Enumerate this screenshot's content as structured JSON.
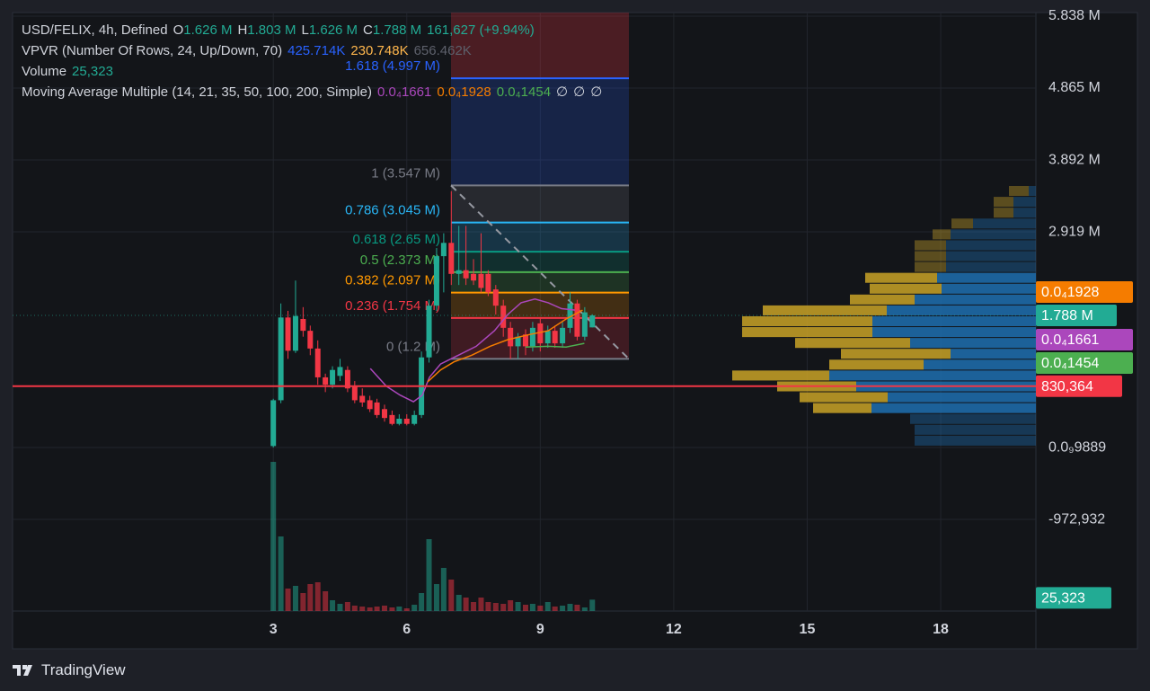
{
  "chart_data": {
    "type": "candlestick",
    "title": "USD/FELIX, 4h, Defined",
    "ohlc_legend": [
      {
        "key": "O",
        "value": 1626000,
        "label": "1.626 M"
      },
      {
        "key": "H",
        "value": 1803000,
        "label": "1.803 M"
      },
      {
        "key": "L",
        "value": 1626000,
        "label": "1.626 M"
      },
      {
        "key": "C",
        "value": 1788000,
        "label": "1.788 M"
      }
    ],
    "change": {
      "value": 161627,
      "label": "161,627 (+9.94%)"
    },
    "up_color": "#22ab94",
    "down_color": "#f23645",
    "x": [
      3,
      3.17,
      3.33,
      3.5,
      3.67,
      3.83,
      4,
      4.17,
      4.33,
      4.5,
      4.67,
      4.83,
      5,
      5.17,
      5.33,
      5.5,
      5.67,
      5.83,
      6,
      6.17,
      6.33,
      6.5,
      6.67,
      6.83,
      7,
      7.17,
      7.33,
      7.5,
      7.67,
      7.83,
      8,
      8.17,
      8.33,
      8.5,
      8.67,
      8.83,
      9,
      9.17,
      9.33,
      9.5,
      9.67,
      9.83,
      10,
      10.17
    ],
    "open": [
      20000,
      640000,
      1760000,
      1310000,
      1740000,
      1580000,
      1340000,
      950000,
      850000,
      970000,
      1050000,
      830000,
      700000,
      640000,
      610000,
      520000,
      440000,
      320000,
      390000,
      320000,
      440000,
      1220000,
      1920000,
      2590000,
      2770000,
      2350000,
      2400000,
      2350000,
      2350000,
      2350000,
      2140000,
      1920000,
      1620000,
      1370000,
      1530000,
      1370000,
      1680000,
      1410000,
      1580000,
      1410000,
      1620000,
      1950000,
      1500000,
      1626000
    ],
    "high": [
      660000,
      1950000,
      1850000,
      2260000,
      1900000,
      1650000,
      1450000,
      1000000,
      1100000,
      1200000,
      1100000,
      900000,
      800000,
      700000,
      660000,
      580000,
      500000,
      450000,
      450000,
      500000,
      1300000,
      2000000,
      2700000,
      2900000,
      3470000,
      3000000,
      3000000,
      2550000,
      2900000,
      2400000,
      2200000,
      2000000,
      1700000,
      1550000,
      1600000,
      1700000,
      1750000,
      1650000,
      1650000,
      1700000,
      2100000,
      2000000,
      1900000,
      1803000
    ],
    "low": [
      0,
      600000,
      1200000,
      1280000,
      1500000,
      1250000,
      850000,
      750000,
      800000,
      900000,
      750000,
      600000,
      550000,
      480000,
      400000,
      350000,
      300000,
      300000,
      300000,
      300000,
      400000,
      1150000,
      1850000,
      2100000,
      2200000,
      2200000,
      2200000,
      2200000,
      2100000,
      2050000,
      1800000,
      1500000,
      1200000,
      1200000,
      1250000,
      1300000,
      1300000,
      1350000,
      1350000,
      1350000,
      1550000,
      1450000,
      1450000,
      1626000
    ],
    "close": [
      640000,
      1760000,
      1310000,
      1780000,
      1580000,
      1340000,
      950000,
      850000,
      1050000,
      1090000,
      800000,
      640000,
      610000,
      520000,
      440000,
      400000,
      320000,
      390000,
      320000,
      440000,
      1220000,
      1920000,
      2590000,
      2770000,
      2350000,
      2400000,
      2290000,
      2260000,
      2160000,
      2100000,
      1920000,
      1620000,
      1370000,
      1500000,
      1370000,
      1620000,
      1410000,
      1580000,
      1410000,
      1620000,
      1950000,
      1500000,
      1830000,
      1788000
    ],
    "volume": {
      "title": "Volume",
      "last": {
        "value": 25323,
        "label": "25,323"
      },
      "values": [
        332000,
        166000,
        50000,
        56000,
        40000,
        60000,
        64000,
        44000,
        24000,
        16000,
        20000,
        12000,
        10000,
        8000,
        10000,
        12000,
        8000,
        10000,
        6000,
        14000,
        40000,
        160000,
        60000,
        96000,
        70000,
        36000,
        30000,
        20000,
        30000,
        20000,
        18000,
        16000,
        24000,
        20000,
        14000,
        16000,
        12000,
        20000,
        10000,
        12000,
        16000,
        14000,
        8000,
        25323
      ]
    },
    "vpvr": {
      "title": "VPVR (Number Of Rows, 24, Up/Down, 70)",
      "up_total": {
        "value": 425714,
        "label": "425.714K",
        "color": "#2962ff"
      },
      "down_total": {
        "value": 230748,
        "label": "230.748K",
        "color": "#ffb74d"
      },
      "total": {
        "value": 656462,
        "label": "656.462K",
        "color": "#5d606b"
      },
      "up_color": "#1e6eb0",
      "down_color": "#c9a227",
      "rows": [
        {
          "up": 1160,
          "down": 3190
        },
        {
          "up": 3625,
          "down": 3190
        },
        {
          "up": 3625,
          "down": 3190
        },
        {
          "up": 10150,
          "down": 3480
        },
        {
          "up": 13775,
          "down": 2900
        },
        {
          "up": 14500,
          "down": 5075
        },
        {
          "up": 14500,
          "down": 5075
        },
        {
          "up": 14500,
          "down": 5075
        },
        {
          "up": 15950,
          "down": 11600
        },
        {
          "up": 15225,
          "down": 11600
        },
        {
          "up": 19575,
          "down": 10440
        },
        {
          "up": 24070,
          "down": 20010
        },
        {
          "up": 26390,
          "down": 21025
        },
        {
          "up": 26390,
          "down": 21025
        },
        {
          "up": 20300,
          "down": 18560
        },
        {
          "up": 13775,
          "down": 17690
        },
        {
          "up": 18125,
          "down": 15225
        },
        {
          "up": 33350,
          "down": 15660
        },
        {
          "up": 29000,
          "down": 12760
        },
        {
          "up": 23925,
          "down": 14210
        },
        {
          "up": 26535,
          "down": 9425
        },
        {
          "up": 20300,
          "down": 0
        },
        {
          "up": 19575,
          "down": 0
        },
        {
          "up": 19575,
          "down": 0
        }
      ]
    },
    "ma": {
      "title": "Moving Average Multiple (14, 21, 35, 50, 100, 200, Simple)",
      "series": [
        {
          "value": 1.661e-05,
          "label": "0.0₄1661",
          "color": "#ab47bc",
          "x": [
            5.18,
            5.54,
            5.85,
            6.15,
            6.35,
            6.51,
            6.76,
            7.16,
            7.56,
            7.97,
            8.27,
            8.57,
            8.88,
            9.18,
            9.48,
            9.78
          ],
          "values": [
            1070000,
            830000,
            710000,
            620000,
            710000,
            950000,
            1130000,
            1250000,
            1370000,
            1580000,
            1800000,
            1960000,
            2010000,
            1960000,
            1880000,
            1860000
          ]
        },
        {
          "value": 1.928e-05,
          "label": "0.0₄1928",
          "color": "#f57c00",
          "x": [
            6.47,
            6.76,
            7.06,
            7.46,
            7.87,
            8.27,
            8.77,
            9.18,
            9.58,
            9.95
          ],
          "values": [
            890000,
            1050000,
            1160000,
            1250000,
            1370000,
            1460000,
            1530000,
            1580000,
            1740000,
            1860000
          ]
        },
        {
          "value": 1.454e-05,
          "label": "0.0₄1454",
          "color": "#4caf50",
          "x": [
            8.67,
            9.18,
            9.58,
            9.99
          ],
          "values": [
            1360000,
            1370000,
            1360000,
            1410000
          ]
        },
        {
          "label": "∅",
          "color": "#d1d4dc"
        },
        {
          "label": "∅",
          "color": "#d1d4dc"
        },
        {
          "label": "∅",
          "color": "#d1d4dc"
        }
      ]
    },
    "fib": [
      {
        "label": "1.618 (4.997 M)",
        "value": 4997000,
        "color": "#2962ff"
      },
      {
        "label": "1 (3.547 M)",
        "value": 3547000,
        "color": "#787b86"
      },
      {
        "label": "0.786 (3.045 M)",
        "value": 3045000,
        "color": "#29b6f6"
      },
      {
        "label": "0.618 (2.65 M)",
        "value": 2650000,
        "color": "#089981"
      },
      {
        "label": "0.5 (2.373 M)",
        "value": 2373000,
        "color": "#4caf50"
      },
      {
        "label": "0.382 (2.097 M)",
        "value": 2097000,
        "color": "#ff9800"
      },
      {
        "label": "0.236 (1.754 M)",
        "value": 1754000,
        "color": "#f23645"
      },
      {
        "label": "0 (1.2 M)",
        "value": 1200000,
        "color": "#787b86"
      }
    ],
    "last_price": {
      "value": 1788000,
      "label": "1.788 M"
    },
    "hline": {
      "value": 830364,
      "label": "830,364",
      "color": "#f23645"
    },
    "xlim": [
      -2.86,
      20.14
    ],
    "xticks": [
      3,
      6,
      9,
      12,
      15,
      18
    ],
    "ylim": [
      -2213000,
      5887000
    ],
    "yticks": [
      {
        "value": 5838000,
        "label": "5.838 M"
      },
      {
        "value": 4865000,
        "label": "4.865 M"
      },
      {
        "value": 3892000,
        "label": "3.892 M"
      },
      {
        "value": 2919000,
        "label": "2.919 M"
      },
      {
        "value": 9.889e-10,
        "label": "0.0₉9889"
      },
      {
        "value": -972932,
        "label": "-972,932"
      }
    ],
    "grid": true
  },
  "footer": {
    "brand": "TradingView"
  }
}
